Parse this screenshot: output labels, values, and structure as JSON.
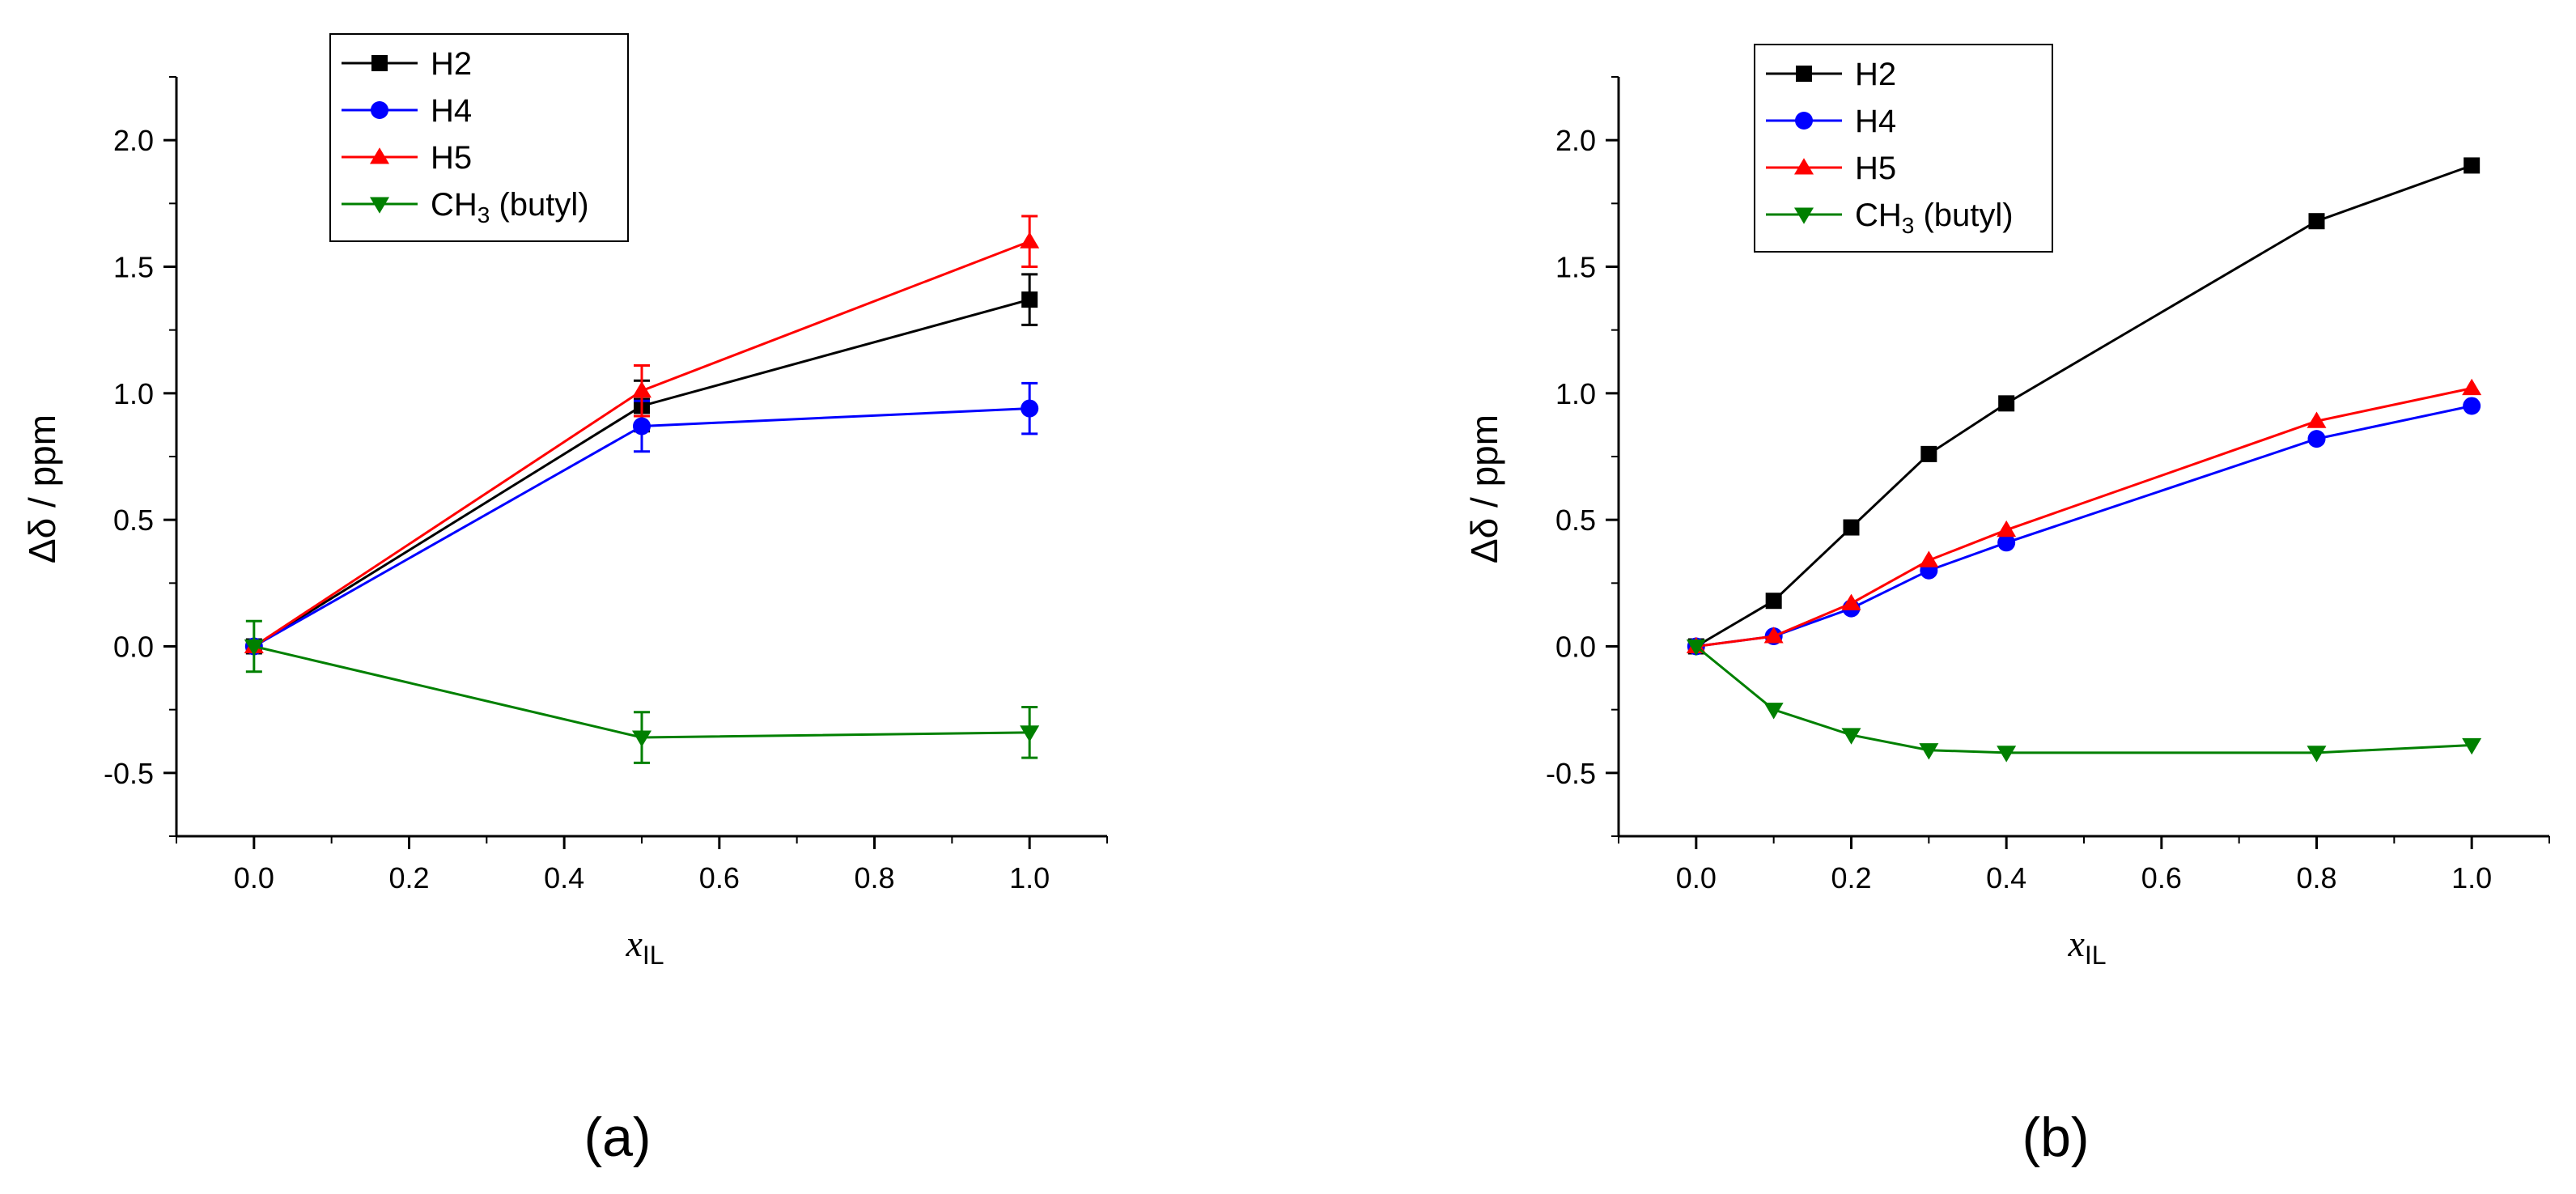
{
  "figure": {
    "panels": [
      {
        "id": "a",
        "label": "(a)"
      },
      {
        "id": "b",
        "label": "(b)"
      }
    ]
  },
  "chart_data": [
    {
      "type": "line",
      "panel": "a",
      "xlabel": "x",
      "xlabel_subscript": "IL",
      "ylabel": "Δδ / ppm",
      "xlim": [
        -0.1,
        1.1
      ],
      "ylim": [
        -0.75,
        2.25
      ],
      "xticks": [
        0.0,
        0.2,
        0.4,
        0.6,
        0.8,
        1.0
      ],
      "xtick_labels": [
        "0.0",
        "0.2",
        "0.4",
        "0.6",
        "0.8",
        "1.0"
      ],
      "yticks": [
        -0.5,
        0.0,
        0.5,
        1.0,
        1.5,
        2.0
      ],
      "ytick_labels": [
        "-0.5",
        "0.0",
        "0.5",
        "1.0",
        "1.5",
        "2.0"
      ],
      "legend_position": "top-center",
      "series": [
        {
          "name": "H2",
          "label_main": "H2",
          "label_sub": "",
          "label_tail": "",
          "color": "#000000",
          "marker": "square",
          "x": [
            0.0,
            0.5,
            1.0
          ],
          "y": [
            0.0,
            0.95,
            1.37
          ],
          "err": [
            0.0,
            0.1,
            0.1
          ]
        },
        {
          "name": "H4",
          "label_main": "H4",
          "label_sub": "",
          "label_tail": "",
          "color": "#0000ff",
          "marker": "circle",
          "x": [
            0.0,
            0.5,
            1.0
          ],
          "y": [
            0.0,
            0.87,
            0.94
          ],
          "err": [
            0.0,
            0.1,
            0.1
          ]
        },
        {
          "name": "H5",
          "label_main": "H5",
          "label_sub": "",
          "label_tail": "",
          "color": "#ff0000",
          "marker": "triangle-up",
          "x": [
            0.0,
            0.5,
            1.0
          ],
          "y": [
            0.0,
            1.01,
            1.6
          ],
          "err": [
            0.0,
            0.1,
            0.1
          ]
        },
        {
          "name": "CH3 (butyl)",
          "label_main": "CH",
          "label_sub": "3",
          "label_tail": " (butyl)",
          "color": "#008000",
          "marker": "triangle-down",
          "x": [
            0.0,
            0.5,
            1.0
          ],
          "y": [
            0.0,
            -0.36,
            -0.34
          ],
          "err": [
            0.1,
            0.1,
            0.1
          ]
        }
      ]
    },
    {
      "type": "line",
      "panel": "b",
      "xlabel": "x",
      "xlabel_subscript": "IL",
      "ylabel": "Δδ / ppm",
      "xlim": [
        -0.1,
        1.1
      ],
      "ylim": [
        -0.75,
        2.25
      ],
      "xticks": [
        0.0,
        0.2,
        0.4,
        0.6,
        0.8,
        1.0
      ],
      "xtick_labels": [
        "0.0",
        "0.2",
        "0.4",
        "0.6",
        "0.8",
        "1.0"
      ],
      "yticks": [
        -0.5,
        0.0,
        0.5,
        1.0,
        1.5,
        2.0
      ],
      "ytick_labels": [
        "-0.5",
        "0.0",
        "0.5",
        "1.0",
        "1.5",
        "2.0"
      ],
      "legend_position": "top-left",
      "series": [
        {
          "name": "H2",
          "label_main": "H2",
          "label_sub": "",
          "label_tail": "",
          "color": "#000000",
          "marker": "square",
          "x": [
            0.0,
            0.1,
            0.2,
            0.3,
            0.4,
            0.8,
            1.0
          ],
          "y": [
            0.0,
            0.18,
            0.47,
            0.76,
            0.96,
            1.68,
            1.9
          ]
        },
        {
          "name": "H4",
          "label_main": "H4",
          "label_sub": "",
          "label_tail": "",
          "color": "#0000ff",
          "marker": "circle",
          "x": [
            0.0,
            0.1,
            0.2,
            0.3,
            0.4,
            0.8,
            1.0
          ],
          "y": [
            0.0,
            0.04,
            0.15,
            0.3,
            0.41,
            0.82,
            0.95
          ]
        },
        {
          "name": "H5",
          "label_main": "H5",
          "label_sub": "",
          "label_tail": "",
          "color": "#ff0000",
          "marker": "triangle-up",
          "x": [
            0.0,
            0.1,
            0.2,
            0.3,
            0.4,
            0.8,
            1.0
          ],
          "y": [
            0.0,
            0.04,
            0.17,
            0.34,
            0.46,
            0.89,
            1.02
          ]
        },
        {
          "name": "CH3 (butyl)",
          "label_main": "CH",
          "label_sub": "3",
          "label_tail": " (butyl)",
          "color": "#008000",
          "marker": "triangle-down",
          "x": [
            0.0,
            0.1,
            0.2,
            0.3,
            0.4,
            0.8,
            1.0
          ],
          "y": [
            0.0,
            -0.25,
            -0.35,
            -0.41,
            -0.42,
            -0.42,
            -0.39
          ]
        }
      ]
    }
  ]
}
